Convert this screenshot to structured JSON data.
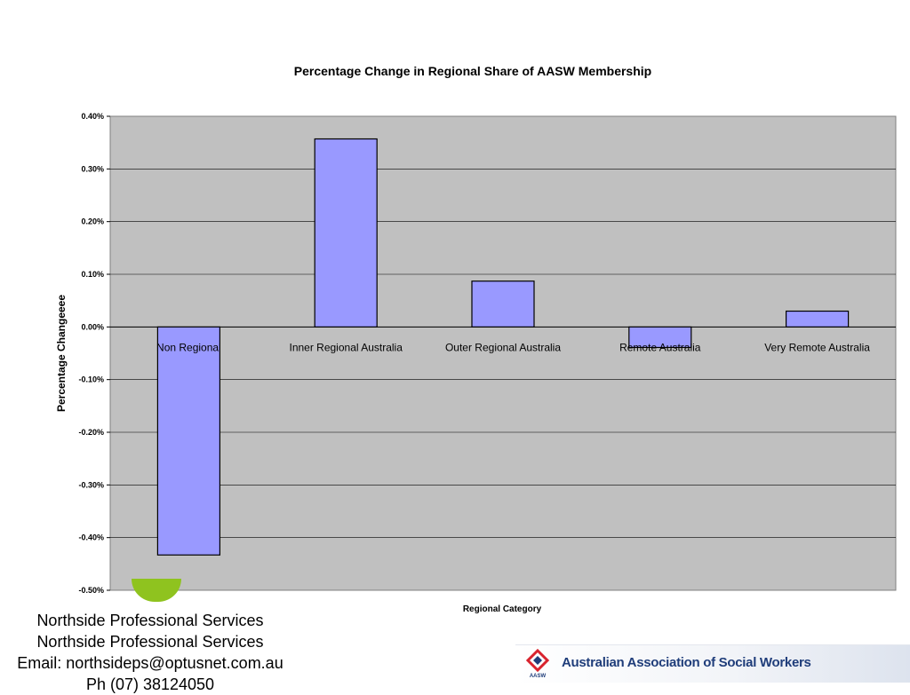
{
  "chart_data": {
    "type": "bar",
    "title": "Percentage Change  in Regional Share of AASW Membership",
    "xlabel": "Regional Category",
    "ylabel": "Percentage Changeeee",
    "categories": [
      "Non Regional",
      "Inner Regional Australia",
      "Outer Regional Australia",
      "Remote Australia",
      "Very Remote Australia"
    ],
    "values": [
      -0.433,
      0.357,
      0.087,
      -0.039,
      0.03
    ],
    "value_unit": "%",
    "ylim": [
      -0.5,
      0.4
    ],
    "yticks": [
      "0.40%",
      "0.30%",
      "0.20%",
      "0.10%",
      "0.00%",
      "-0.10%",
      "-0.20%",
      "-0.30%",
      "-0.40%",
      "-0.50%"
    ],
    "grid": true,
    "legend": "none",
    "colors": {
      "bar_fill": "#9999ff",
      "bar_stroke": "#000000",
      "plot_background": "#c0c0c0",
      "gridline": "#000000"
    }
  },
  "footer": {
    "lines": [
      "Northside Professional Services",
      "Northside Professional Services",
      "Email: northsideps@optusnet.com.au",
      "Ph (07) 38124050"
    ]
  },
  "logo": {
    "name": "Australian Association of Social Workers",
    "mark_text": "AASW",
    "colors": {
      "red": "#d9232e",
      "navy": "#1f3d7a"
    }
  }
}
